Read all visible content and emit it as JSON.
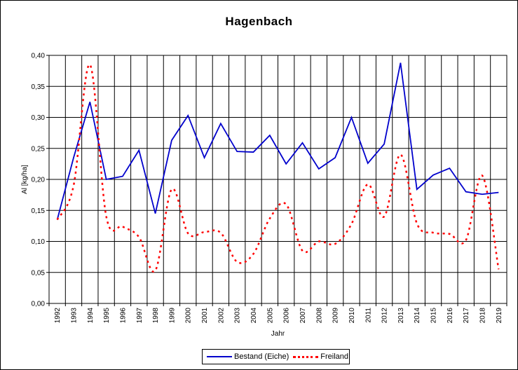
{
  "chart_data": {
    "type": "line",
    "title": "Hagenbach",
    "xlabel": "Jahr",
    "ylabel": "Al [kg/ha]",
    "ylim": [
      0,
      0.4
    ],
    "y_ticks": [
      "0,00",
      "0,05",
      "0,10",
      "0,15",
      "0,20",
      "0,25",
      "0,30",
      "0,35",
      "0,40"
    ],
    "categories": [
      "1992",
      "1993",
      "1994",
      "1995",
      "1996",
      "1997",
      "1998",
      "1999",
      "2000",
      "2001",
      "2002",
      "2003",
      "2004",
      "2005",
      "2006",
      "2007",
      "2008",
      "2009",
      "2010",
      "2011",
      "2012",
      "2013",
      "2014",
      "2015",
      "2016",
      "2017",
      "2018",
      "2019"
    ],
    "grid": true,
    "legend_position": "bottom",
    "series": [
      {
        "name": "Bestand (Eiche)",
        "color": "#0000cc",
        "style": "solid",
        "values": [
          0.135,
          0.235,
          0.325,
          0.2,
          0.205,
          0.247,
          0.145,
          0.263,
          0.303,
          0.235,
          0.29,
          0.245,
          0.244,
          0.271,
          0.225,
          0.259,
          0.217,
          0.235,
          0.3,
          0.226,
          0.257,
          0.388,
          0.184,
          0.207,
          0.218,
          0.18,
          0.176,
          0.179
        ]
      },
      {
        "name": "Freiland",
        "color": "#ff0000",
        "style": "dotted",
        "values": [
          0.135,
          0.19,
          0.385,
          0.14,
          0.124,
          0.107,
          0.053,
          0.184,
          0.113,
          0.115,
          0.114,
          0.067,
          0.08,
          0.137,
          0.16,
          0.085,
          0.1,
          0.096,
          0.128,
          0.192,
          0.14,
          0.24,
          0.129,
          0.114,
          0.112,
          0.102,
          0.206,
          0.055
        ]
      }
    ]
  }
}
